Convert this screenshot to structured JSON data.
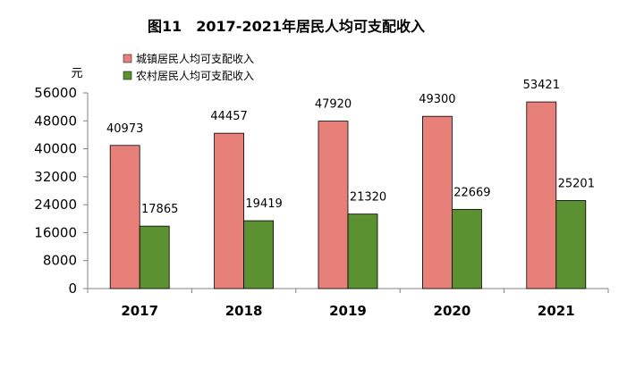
{
  "chart_data": {
    "type": "bar",
    "title": "图11　2017-2021年居民人均可支配收入",
    "unit": "元",
    "categories": [
      "2017",
      "2018",
      "2019",
      "2020",
      "2021"
    ],
    "series": [
      {
        "name": "城镇居民人均可支配收入",
        "color": "#E8807A",
        "values": [
          40973,
          44457,
          47920,
          49300,
          53421
        ]
      },
      {
        "name": "农村居民人均可支配收入",
        "color": "#5B9130",
        "values": [
          17865,
          19419,
          21320,
          22669,
          25201
        ]
      }
    ],
    "ylim": [
      0,
      56000
    ],
    "yticks": [
      0,
      8000,
      16000,
      24000,
      32000,
      40000,
      48000,
      56000
    ],
    "legend": "top-left",
    "grid": false
  }
}
